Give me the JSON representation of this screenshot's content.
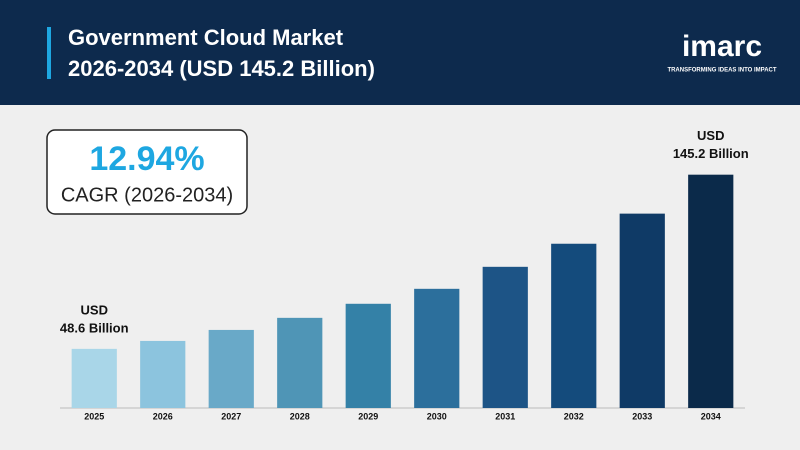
{
  "chart_data": {
    "type": "bar",
    "title_lines": [
      "Government Cloud Market",
      "2026-2034 (USD 145.2 Billion)"
    ],
    "brand": {
      "name": "imarc",
      "tagline": "TRANSFORMING IDEAS INTO IMPACT"
    },
    "highlight": {
      "value_label": "12.94%",
      "caption": "CAGR (2026-2034)"
    },
    "categories": [
      "2025",
      "2026",
      "2027",
      "2028",
      "2029",
      "2030",
      "2031",
      "2032",
      "2033",
      "2034"
    ],
    "values": [
      48.6,
      53.0,
      59.1,
      65.8,
      73.6,
      81.9,
      94.1,
      106.9,
      123.6,
      145.2
    ],
    "value_label_unit": "USD",
    "value_labels": [
      "48.6 Billion",
      null,
      null,
      null,
      null,
      null,
      null,
      null,
      null,
      "145.2 Billion"
    ],
    "colors": [
      "#a9d6e8",
      "#8cc4de",
      "#69a9c8",
      "#4f95b6",
      "#3481a7",
      "#2c6f9c",
      "#1d5486",
      "#144b7c",
      "#0f3a66",
      "#0b2a4a"
    ],
    "ylim": [
      15.8,
      160
    ]
  }
}
